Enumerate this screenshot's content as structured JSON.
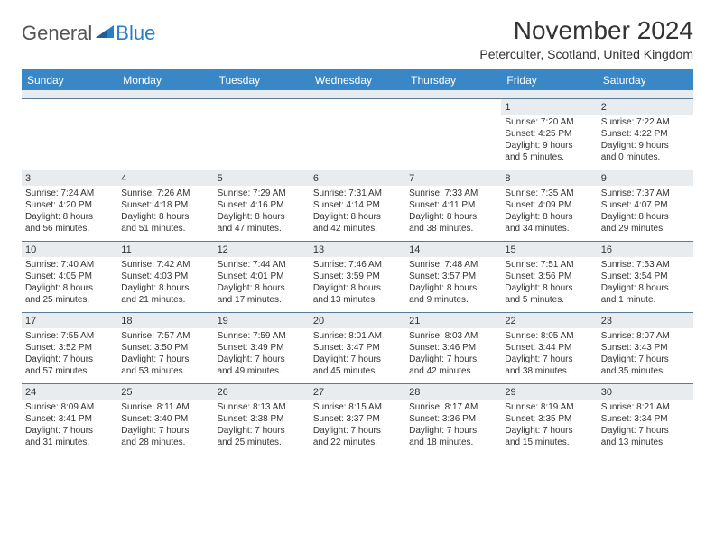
{
  "brand": {
    "word1": "General",
    "word2": "Blue"
  },
  "title": "November 2024",
  "location": "Peterculter, Scotland, United Kingdom",
  "colors": {
    "header_bg": "#3a87c8",
    "header_text": "#ffffff",
    "band_bg": "#e9ecef",
    "rule": "#5a7a99",
    "brand_blue": "#2a7ec4",
    "text": "#333333"
  },
  "dayNames": [
    "Sunday",
    "Monday",
    "Tuesday",
    "Wednesday",
    "Thursday",
    "Friday",
    "Saturday"
  ],
  "weeks": [
    [
      null,
      null,
      null,
      null,
      null,
      {
        "num": "1",
        "sunrise": "Sunrise: 7:20 AM",
        "sunset": "Sunset: 4:25 PM",
        "daylight1": "Daylight: 9 hours",
        "daylight2": "and 5 minutes."
      },
      {
        "num": "2",
        "sunrise": "Sunrise: 7:22 AM",
        "sunset": "Sunset: 4:22 PM",
        "daylight1": "Daylight: 9 hours",
        "daylight2": "and 0 minutes."
      }
    ],
    [
      {
        "num": "3",
        "sunrise": "Sunrise: 7:24 AM",
        "sunset": "Sunset: 4:20 PM",
        "daylight1": "Daylight: 8 hours",
        "daylight2": "and 56 minutes."
      },
      {
        "num": "4",
        "sunrise": "Sunrise: 7:26 AM",
        "sunset": "Sunset: 4:18 PM",
        "daylight1": "Daylight: 8 hours",
        "daylight2": "and 51 minutes."
      },
      {
        "num": "5",
        "sunrise": "Sunrise: 7:29 AM",
        "sunset": "Sunset: 4:16 PM",
        "daylight1": "Daylight: 8 hours",
        "daylight2": "and 47 minutes."
      },
      {
        "num": "6",
        "sunrise": "Sunrise: 7:31 AM",
        "sunset": "Sunset: 4:14 PM",
        "daylight1": "Daylight: 8 hours",
        "daylight2": "and 42 minutes."
      },
      {
        "num": "7",
        "sunrise": "Sunrise: 7:33 AM",
        "sunset": "Sunset: 4:11 PM",
        "daylight1": "Daylight: 8 hours",
        "daylight2": "and 38 minutes."
      },
      {
        "num": "8",
        "sunrise": "Sunrise: 7:35 AM",
        "sunset": "Sunset: 4:09 PM",
        "daylight1": "Daylight: 8 hours",
        "daylight2": "and 34 minutes."
      },
      {
        "num": "9",
        "sunrise": "Sunrise: 7:37 AM",
        "sunset": "Sunset: 4:07 PM",
        "daylight1": "Daylight: 8 hours",
        "daylight2": "and 29 minutes."
      }
    ],
    [
      {
        "num": "10",
        "sunrise": "Sunrise: 7:40 AM",
        "sunset": "Sunset: 4:05 PM",
        "daylight1": "Daylight: 8 hours",
        "daylight2": "and 25 minutes."
      },
      {
        "num": "11",
        "sunrise": "Sunrise: 7:42 AM",
        "sunset": "Sunset: 4:03 PM",
        "daylight1": "Daylight: 8 hours",
        "daylight2": "and 21 minutes."
      },
      {
        "num": "12",
        "sunrise": "Sunrise: 7:44 AM",
        "sunset": "Sunset: 4:01 PM",
        "daylight1": "Daylight: 8 hours",
        "daylight2": "and 17 minutes."
      },
      {
        "num": "13",
        "sunrise": "Sunrise: 7:46 AM",
        "sunset": "Sunset: 3:59 PM",
        "daylight1": "Daylight: 8 hours",
        "daylight2": "and 13 minutes."
      },
      {
        "num": "14",
        "sunrise": "Sunrise: 7:48 AM",
        "sunset": "Sunset: 3:57 PM",
        "daylight1": "Daylight: 8 hours",
        "daylight2": "and 9 minutes."
      },
      {
        "num": "15",
        "sunrise": "Sunrise: 7:51 AM",
        "sunset": "Sunset: 3:56 PM",
        "daylight1": "Daylight: 8 hours",
        "daylight2": "and 5 minutes."
      },
      {
        "num": "16",
        "sunrise": "Sunrise: 7:53 AM",
        "sunset": "Sunset: 3:54 PM",
        "daylight1": "Daylight: 8 hours",
        "daylight2": "and 1 minute."
      }
    ],
    [
      {
        "num": "17",
        "sunrise": "Sunrise: 7:55 AM",
        "sunset": "Sunset: 3:52 PM",
        "daylight1": "Daylight: 7 hours",
        "daylight2": "and 57 minutes."
      },
      {
        "num": "18",
        "sunrise": "Sunrise: 7:57 AM",
        "sunset": "Sunset: 3:50 PM",
        "daylight1": "Daylight: 7 hours",
        "daylight2": "and 53 minutes."
      },
      {
        "num": "19",
        "sunrise": "Sunrise: 7:59 AM",
        "sunset": "Sunset: 3:49 PM",
        "daylight1": "Daylight: 7 hours",
        "daylight2": "and 49 minutes."
      },
      {
        "num": "20",
        "sunrise": "Sunrise: 8:01 AM",
        "sunset": "Sunset: 3:47 PM",
        "daylight1": "Daylight: 7 hours",
        "daylight2": "and 45 minutes."
      },
      {
        "num": "21",
        "sunrise": "Sunrise: 8:03 AM",
        "sunset": "Sunset: 3:46 PM",
        "daylight1": "Daylight: 7 hours",
        "daylight2": "and 42 minutes."
      },
      {
        "num": "22",
        "sunrise": "Sunrise: 8:05 AM",
        "sunset": "Sunset: 3:44 PM",
        "daylight1": "Daylight: 7 hours",
        "daylight2": "and 38 minutes."
      },
      {
        "num": "23",
        "sunrise": "Sunrise: 8:07 AM",
        "sunset": "Sunset: 3:43 PM",
        "daylight1": "Daylight: 7 hours",
        "daylight2": "and 35 minutes."
      }
    ],
    [
      {
        "num": "24",
        "sunrise": "Sunrise: 8:09 AM",
        "sunset": "Sunset: 3:41 PM",
        "daylight1": "Daylight: 7 hours",
        "daylight2": "and 31 minutes."
      },
      {
        "num": "25",
        "sunrise": "Sunrise: 8:11 AM",
        "sunset": "Sunset: 3:40 PM",
        "daylight1": "Daylight: 7 hours",
        "daylight2": "and 28 minutes."
      },
      {
        "num": "26",
        "sunrise": "Sunrise: 8:13 AM",
        "sunset": "Sunset: 3:38 PM",
        "daylight1": "Daylight: 7 hours",
        "daylight2": "and 25 minutes."
      },
      {
        "num": "27",
        "sunrise": "Sunrise: 8:15 AM",
        "sunset": "Sunset: 3:37 PM",
        "daylight1": "Daylight: 7 hours",
        "daylight2": "and 22 minutes."
      },
      {
        "num": "28",
        "sunrise": "Sunrise: 8:17 AM",
        "sunset": "Sunset: 3:36 PM",
        "daylight1": "Daylight: 7 hours",
        "daylight2": "and 18 minutes."
      },
      {
        "num": "29",
        "sunrise": "Sunrise: 8:19 AM",
        "sunset": "Sunset: 3:35 PM",
        "daylight1": "Daylight: 7 hours",
        "daylight2": "and 15 minutes."
      },
      {
        "num": "30",
        "sunrise": "Sunrise: 8:21 AM",
        "sunset": "Sunset: 3:34 PM",
        "daylight1": "Daylight: 7 hours",
        "daylight2": "and 13 minutes."
      }
    ]
  ]
}
